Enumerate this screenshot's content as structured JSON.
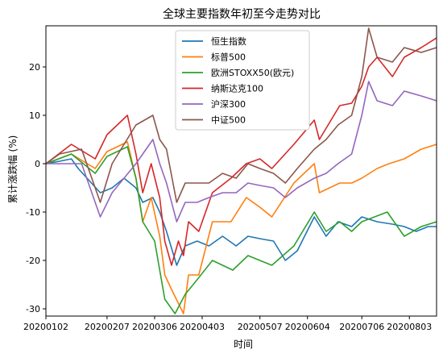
{
  "chart_data": {
    "type": "line",
    "title": "全球主要指数年初至今走势对比",
    "xlabel": "时间",
    "ylabel": "累计涨跌幅 (%)",
    "ylim": [
      -31.5,
      28.5
    ],
    "yticks": [
      -30,
      -20,
      -10,
      0,
      10,
      20
    ],
    "grid": false,
    "legend_position": "top-center",
    "x_range": [
      "2020-01-02",
      "2020-08-19"
    ],
    "xticks": [
      {
        "date": "2020-01-02",
        "label": "20200102"
      },
      {
        "date": "2020-02-07",
        "label": "20200207"
      },
      {
        "date": "2020-03-06",
        "label": "20200306"
      },
      {
        "date": "2020-04-03",
        "label": "20200403"
      },
      {
        "date": "2020-05-07",
        "label": "20200507"
      },
      {
        "date": "2020-06-04",
        "label": "20200604"
      },
      {
        "date": "2020-07-06",
        "label": "20200706"
      },
      {
        "date": "2020-08-03",
        "label": "20200803"
      }
    ],
    "series": [
      {
        "name": "恒生指数",
        "color": "#1f77b4",
        "points": [
          [
            "2020-01-02",
            0
          ],
          [
            "2020-01-10",
            0.5
          ],
          [
            "2020-01-17",
            1
          ],
          [
            "2020-01-21",
            -1
          ],
          [
            "2020-02-03",
            -6
          ],
          [
            "2020-02-10",
            -5
          ],
          [
            "2020-02-17",
            -3
          ],
          [
            "2020-02-24",
            -5
          ],
          [
            "2020-02-28",
            -8
          ],
          [
            "2020-03-05",
            -7
          ],
          [
            "2020-03-09",
            -10
          ],
          [
            "2020-03-13",
            -14
          ],
          [
            "2020-03-19",
            -21
          ],
          [
            "2020-03-24",
            -17
          ],
          [
            "2020-03-31",
            -16
          ],
          [
            "2020-04-07",
            -17
          ],
          [
            "2020-04-15",
            -15
          ],
          [
            "2020-04-23",
            -17
          ],
          [
            "2020-04-30",
            -15
          ],
          [
            "2020-05-07",
            -15.5
          ],
          [
            "2020-05-15",
            -16
          ],
          [
            "2020-05-22",
            -20
          ],
          [
            "2020-05-29",
            -18
          ],
          [
            "2020-06-08",
            -11
          ],
          [
            "2020-06-15",
            -15
          ],
          [
            "2020-06-22",
            -12
          ],
          [
            "2020-06-30",
            -13
          ],
          [
            "2020-07-06",
            -11
          ],
          [
            "2020-07-15",
            -12
          ],
          [
            "2020-07-24",
            -12.5
          ],
          [
            "2020-07-31",
            -13
          ],
          [
            "2020-08-07",
            -14
          ],
          [
            "2020-08-14",
            -13
          ],
          [
            "2020-08-19",
            -13
          ]
        ]
      },
      {
        "name": "标普500",
        "color": "#ff7f0e",
        "points": [
          [
            "2020-01-02",
            0
          ],
          [
            "2020-01-17",
            2
          ],
          [
            "2020-01-31",
            -1
          ],
          [
            "2020-02-07",
            2.5
          ],
          [
            "2020-02-19",
            4.5
          ],
          [
            "2020-02-24",
            -3
          ],
          [
            "2020-02-28",
            -12
          ],
          [
            "2020-03-04",
            -7
          ],
          [
            "2020-03-09",
            -15
          ],
          [
            "2020-03-12",
            -23
          ],
          [
            "2020-03-16",
            -26
          ],
          [
            "2020-03-23",
            -31
          ],
          [
            "2020-03-26",
            -23
          ],
          [
            "2020-04-01",
            -23
          ],
          [
            "2020-04-09",
            -12
          ],
          [
            "2020-04-20",
            -12
          ],
          [
            "2020-04-29",
            -7
          ],
          [
            "2020-05-07",
            -9
          ],
          [
            "2020-05-14",
            -11
          ],
          [
            "2020-05-27",
            -4
          ],
          [
            "2020-06-08",
            0
          ],
          [
            "2020-06-11",
            -6
          ],
          [
            "2020-06-23",
            -4
          ],
          [
            "2020-06-30",
            -4
          ],
          [
            "2020-07-06",
            -3
          ],
          [
            "2020-07-15",
            -1
          ],
          [
            "2020-07-22",
            0
          ],
          [
            "2020-07-31",
            1
          ],
          [
            "2020-08-10",
            3
          ],
          [
            "2020-08-19",
            4
          ]
        ]
      },
      {
        "name": "欧洲STOXX50(欧元)",
        "color": "#2ca02c",
        "points": [
          [
            "2020-01-02",
            0
          ],
          [
            "2020-01-17",
            2
          ],
          [
            "2020-01-31",
            -2
          ],
          [
            "2020-02-07",
            1.5
          ],
          [
            "2020-02-19",
            3.5
          ],
          [
            "2020-02-24",
            -3
          ],
          [
            "2020-02-28",
            -12
          ],
          [
            "2020-03-06",
            -16
          ],
          [
            "2020-03-09",
            -22
          ],
          [
            "2020-03-12",
            -28
          ],
          [
            "2020-03-18",
            -31
          ],
          [
            "2020-03-24",
            -27
          ],
          [
            "2020-03-31",
            -24
          ],
          [
            "2020-04-09",
            -20
          ],
          [
            "2020-04-21",
            -22
          ],
          [
            "2020-04-30",
            -19
          ],
          [
            "2020-05-14",
            -21
          ],
          [
            "2020-05-27",
            -17
          ],
          [
            "2020-06-08",
            -10
          ],
          [
            "2020-06-15",
            -14
          ],
          [
            "2020-06-23",
            -12
          ],
          [
            "2020-06-30",
            -14
          ],
          [
            "2020-07-06",
            -12
          ],
          [
            "2020-07-21",
            -10
          ],
          [
            "2020-07-31",
            -15
          ],
          [
            "2020-08-10",
            -13
          ],
          [
            "2020-08-19",
            -12
          ]
        ]
      },
      {
        "name": "纳斯达克100",
        "color": "#d62728",
        "points": [
          [
            "2020-01-02",
            0
          ],
          [
            "2020-01-17",
            4
          ],
          [
            "2020-01-31",
            1
          ],
          [
            "2020-02-07",
            6
          ],
          [
            "2020-02-19",
            10
          ],
          [
            "2020-02-24",
            2
          ],
          [
            "2020-02-28",
            -6
          ],
          [
            "2020-03-04",
            0
          ],
          [
            "2020-03-09",
            -7
          ],
          [
            "2020-03-12",
            -16
          ],
          [
            "2020-03-16",
            -21
          ],
          [
            "2020-03-20",
            -16
          ],
          [
            "2020-03-23",
            -19
          ],
          [
            "2020-03-26",
            -12
          ],
          [
            "2020-04-01",
            -14
          ],
          [
            "2020-04-09",
            -6
          ],
          [
            "2020-04-20",
            -3
          ],
          [
            "2020-04-29",
            0
          ],
          [
            "2020-05-07",
            1
          ],
          [
            "2020-05-14",
            -1
          ],
          [
            "2020-05-27",
            4
          ],
          [
            "2020-06-08",
            9
          ],
          [
            "2020-06-11",
            5
          ],
          [
            "2020-06-23",
            12
          ],
          [
            "2020-06-30",
            12.5
          ],
          [
            "2020-07-06",
            16
          ],
          [
            "2020-07-10",
            20
          ],
          [
            "2020-07-15",
            22
          ],
          [
            "2020-07-24",
            18
          ],
          [
            "2020-07-31",
            22
          ],
          [
            "2020-08-10",
            24
          ],
          [
            "2020-08-19",
            26
          ]
        ]
      },
      {
        "name": "沪深300",
        "color": "#9467bd",
        "points": [
          [
            "2020-01-02",
            0
          ],
          [
            "2020-01-23",
            0
          ],
          [
            "2020-02-03",
            -11
          ],
          [
            "2020-02-10",
            -6
          ],
          [
            "2020-02-17",
            -3
          ],
          [
            "2020-02-24",
            0
          ],
          [
            "2020-03-05",
            5
          ],
          [
            "2020-03-09",
            0
          ],
          [
            "2020-03-13",
            -4
          ],
          [
            "2020-03-19",
            -12
          ],
          [
            "2020-03-24",
            -8
          ],
          [
            "2020-03-31",
            -8
          ],
          [
            "2020-04-07",
            -7
          ],
          [
            "2020-04-15",
            -6
          ],
          [
            "2020-04-23",
            -6
          ],
          [
            "2020-04-30",
            -4
          ],
          [
            "2020-05-07",
            -4.5
          ],
          [
            "2020-05-15",
            -5
          ],
          [
            "2020-05-22",
            -7
          ],
          [
            "2020-05-29",
            -5
          ],
          [
            "2020-06-08",
            -3
          ],
          [
            "2020-06-15",
            -2
          ],
          [
            "2020-06-22",
            0
          ],
          [
            "2020-06-30",
            2
          ],
          [
            "2020-07-06",
            10
          ],
          [
            "2020-07-10",
            17
          ],
          [
            "2020-07-15",
            13
          ],
          [
            "2020-07-24",
            12
          ],
          [
            "2020-07-31",
            15
          ],
          [
            "2020-08-10",
            14
          ],
          [
            "2020-08-19",
            13
          ]
        ]
      },
      {
        "name": "中证500",
        "color": "#8c564b",
        "points": [
          [
            "2020-01-02",
            0
          ],
          [
            "2020-01-10",
            2
          ],
          [
            "2020-01-23",
            3
          ],
          [
            "2020-02-03",
            -8
          ],
          [
            "2020-02-10",
            0
          ],
          [
            "2020-02-17",
            4
          ],
          [
            "2020-02-24",
            8
          ],
          [
            "2020-03-05",
            10
          ],
          [
            "2020-03-09",
            5
          ],
          [
            "2020-03-13",
            3
          ],
          [
            "2020-03-19",
            -8
          ],
          [
            "2020-03-24",
            -4
          ],
          [
            "2020-03-31",
            -4
          ],
          [
            "2020-04-07",
            -4
          ],
          [
            "2020-04-15",
            -2
          ],
          [
            "2020-04-23",
            -3
          ],
          [
            "2020-04-30",
            0
          ],
          [
            "2020-05-07",
            -1
          ],
          [
            "2020-05-15",
            -2
          ],
          [
            "2020-05-22",
            -4
          ],
          [
            "2020-05-29",
            -1
          ],
          [
            "2020-06-08",
            3
          ],
          [
            "2020-06-15",
            5
          ],
          [
            "2020-06-22",
            8
          ],
          [
            "2020-06-30",
            10
          ],
          [
            "2020-07-06",
            18
          ],
          [
            "2020-07-10",
            28
          ],
          [
            "2020-07-15",
            22
          ],
          [
            "2020-07-24",
            21
          ],
          [
            "2020-07-31",
            24
          ],
          [
            "2020-08-10",
            23
          ],
          [
            "2020-08-19",
            24
          ]
        ]
      }
    ]
  }
}
